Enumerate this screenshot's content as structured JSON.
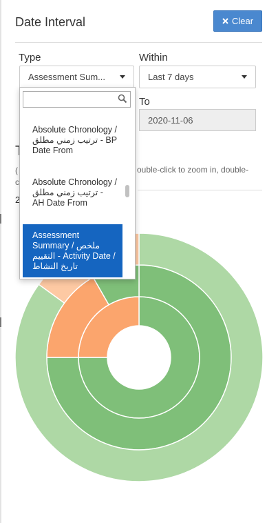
{
  "panel": {
    "title": "Date Interval",
    "clear_label": "Clear"
  },
  "filters": {
    "type_label": "Type",
    "type_value": "Assessment Sum...",
    "within_label": "Within",
    "within_value": "Last 7 days",
    "to_label": "To",
    "to_value": "2020-11-06"
  },
  "background": {
    "heading_partial": "T",
    "note_paren": "(",
    "note_c": "c",
    "zoom_hint": "ouble-click to zoom in, double-",
    "row_partial": "2"
  },
  "dropdown": {
    "search_value": "",
    "options": [
      {
        "label": "Absolute Chronology / ترتيب زمني مطلق - BP Date From",
        "selected": false
      },
      {
        "label": "Absolute Chronology / ترتيب زمني مطلق - AH Date From",
        "selected": false
      },
      {
        "label": "Assessment Summary / ملخص التقييم - Activity Date / تاريخ النشاط",
        "selected": true
      }
    ]
  },
  "chart_data": {
    "type": "sunburst",
    "colors": {
      "green_outer": "#aed8a5",
      "green_inner": "#7fbf79",
      "orange_outer": "#fdc9a3",
      "orange_inner": "#fba56d"
    },
    "rings": [
      [
        {
          "fraction": 0.75,
          "color": "green_inner"
        },
        {
          "fraction": 0.25,
          "color": "orange_inner"
        }
      ],
      [
        {
          "fraction": 0.75,
          "color": "green_inner"
        },
        {
          "fraction": 0.167,
          "color": "orange_inner"
        },
        {
          "fraction": 0.083,
          "color": "green_inner"
        }
      ],
      [
        {
          "fraction": 0.85,
          "color": "green_outer"
        },
        {
          "fraction": 0.15,
          "color": "orange_outer"
        }
      ]
    ]
  }
}
